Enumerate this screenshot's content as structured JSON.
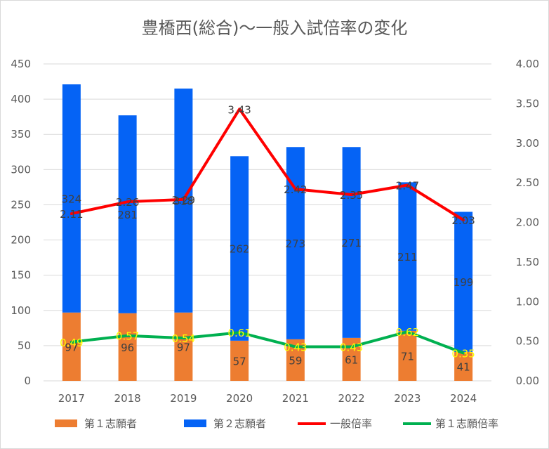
{
  "chart_data": {
    "type": "bar",
    "title": "豊橋西(総合)～一般入試倍率の変化",
    "categories": [
      "2017",
      "2018",
      "2019",
      "2020",
      "2021",
      "2022",
      "2023",
      "2024"
    ],
    "stacked": true,
    "y_left": {
      "min": 0,
      "max": 450,
      "step": 50,
      "ticks": [
        "0",
        "50",
        "100",
        "150",
        "200",
        "250",
        "300",
        "350",
        "400",
        "450"
      ]
    },
    "y_right": {
      "min": 0,
      "max": 4,
      "step": 0.5,
      "ticks": [
        "0.00",
        "0.50",
        "1.00",
        "1.50",
        "2.00",
        "2.50",
        "3.00",
        "3.50",
        "4.00"
      ]
    },
    "gridlines": true,
    "legend_position": "bottom",
    "series": [
      {
        "name": "第１志願者",
        "type": "bar",
        "axis": "left",
        "color": "#ED7D31",
        "values": [
          97,
          96,
          97,
          57,
          59,
          61,
          71,
          41
        ],
        "labels": [
          "97",
          "96",
          "97",
          "57",
          "59",
          "61",
          "71",
          "41"
        ]
      },
      {
        "name": "第２志願者",
        "type": "bar",
        "axis": "left",
        "color": "#0563F5",
        "values": [
          324,
          281,
          318,
          262,
          273,
          271,
          211,
          199
        ],
        "labels": [
          "324",
          "281",
          "318",
          "262",
          "273",
          "271",
          "211",
          "199"
        ]
      },
      {
        "name": "一般倍率",
        "type": "line",
        "axis": "right",
        "color": "#FF0000",
        "values": [
          2.11,
          2.26,
          2.29,
          3.43,
          2.42,
          2.35,
          2.47,
          2.03
        ],
        "labels": [
          "2.11",
          "2.26",
          "2.29",
          "3.43",
          "2.42",
          "2.35",
          "2.47",
          "2.03"
        ]
      },
      {
        "name": "第１志願倍率",
        "type": "line",
        "axis": "right",
        "color": "#00B050",
        "label_color": "#FFFF00",
        "values": [
          0.49,
          0.57,
          0.54,
          0.61,
          0.43,
          0.43,
          0.62,
          0.35
        ],
        "labels": [
          "0.49",
          "0.57",
          "0.54",
          "0.61",
          "0.43",
          "0.43",
          "0.62",
          "0.35"
        ]
      }
    ]
  }
}
